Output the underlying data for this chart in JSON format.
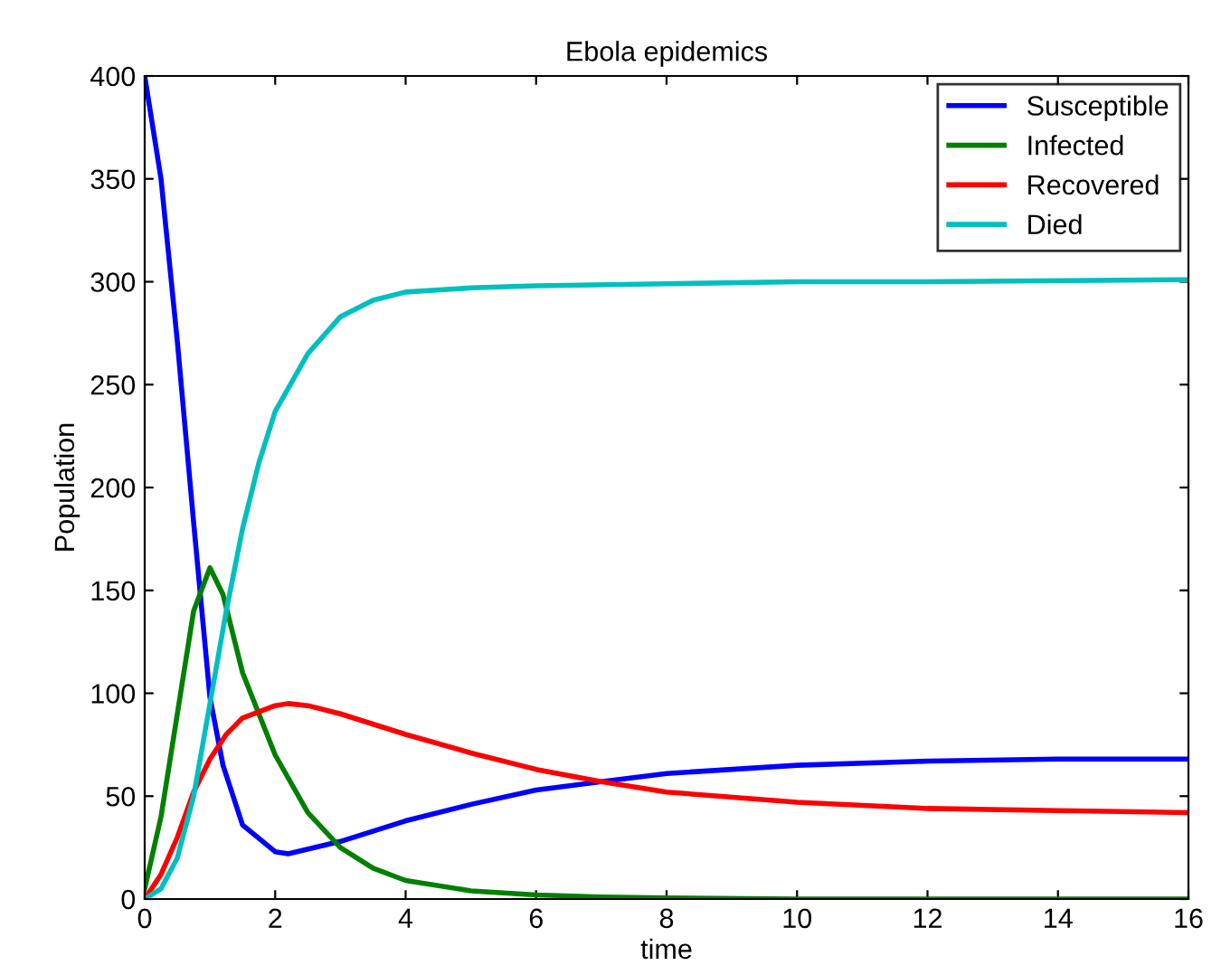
{
  "chart_data": {
    "type": "line",
    "title": "Ebola epidemics",
    "xlabel": "time",
    "ylabel": "Population",
    "xlim": [
      0,
      16
    ],
    "ylim": [
      0,
      400
    ],
    "xticks": [
      0,
      2,
      4,
      6,
      8,
      10,
      12,
      14,
      16
    ],
    "yticks": [
      0,
      50,
      100,
      150,
      200,
      250,
      300,
      350,
      400
    ],
    "grid": false,
    "legend": "top right",
    "marker": "none",
    "line_style": "solid",
    "series": [
      {
        "name": "Susceptible",
        "color": "#0000ff",
        "x": [
          0,
          0.25,
          0.5,
          0.75,
          1,
          1.2,
          1.5,
          2,
          2.2,
          3,
          4,
          5,
          6,
          7,
          8,
          10,
          12,
          14,
          16
        ],
        "values": [
          400,
          350,
          271,
          183,
          98,
          65,
          36,
          23,
          22,
          28,
          38,
          46,
          53,
          57,
          61,
          65,
          67,
          68,
          68
        ]
      },
      {
        "name": "Infected",
        "color": "#008000",
        "x": [
          0,
          0.25,
          0.5,
          0.75,
          1,
          1.2,
          1.5,
          2,
          2.5,
          3,
          3.5,
          4,
          5,
          6,
          7,
          8,
          10,
          16
        ],
        "values": [
          5,
          40,
          90,
          140,
          161,
          148,
          110,
          70,
          42,
          25,
          15,
          9,
          4,
          2,
          1,
          0.5,
          0,
          0
        ]
      },
      {
        "name": "Recovered",
        "color": "#ff0000",
        "x": [
          0,
          0.25,
          0.5,
          0.75,
          1,
          1.25,
          1.5,
          2,
          2.2,
          2.5,
          3,
          4,
          5,
          6,
          7,
          8,
          10,
          12,
          14,
          16
        ],
        "values": [
          0,
          12,
          30,
          52,
          68,
          80,
          88,
          94,
          95,
          94,
          90,
          80,
          71,
          63,
          57,
          52,
          47,
          44,
          43,
          42
        ]
      },
      {
        "name": "Died",
        "color": "#00bfbf",
        "x": [
          0,
          0.25,
          0.5,
          0.75,
          1,
          1.25,
          1.5,
          1.75,
          2,
          2.5,
          3,
          3.5,
          4,
          5,
          6,
          8,
          10,
          12,
          16
        ],
        "values": [
          0,
          5,
          20,
          50,
          95,
          140,
          180,
          212,
          237,
          265,
          283,
          291,
          295,
          297,
          298,
          299,
          300,
          300,
          301
        ]
      }
    ]
  }
}
